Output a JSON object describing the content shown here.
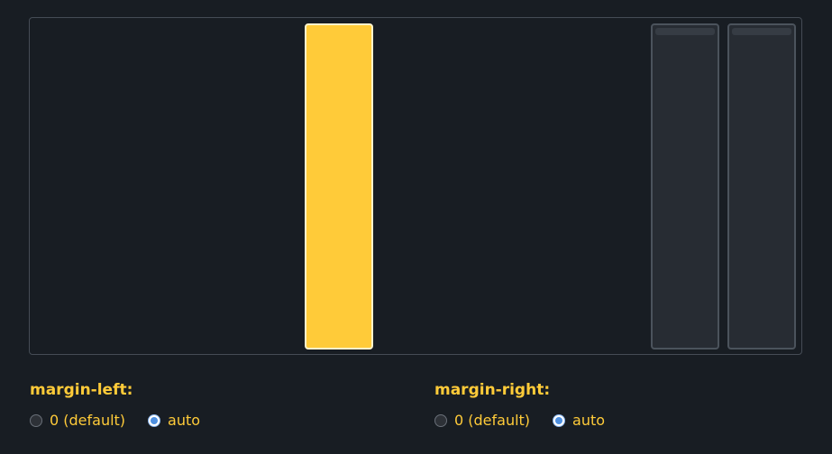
{
  "margin_left": {
    "label": "margin-left:",
    "options": [
      {
        "label": "0 (default)",
        "selected": false
      },
      {
        "label": "auto",
        "selected": true
      }
    ]
  },
  "margin_right": {
    "label": "margin-right:",
    "options": [
      {
        "label": "0 (default)",
        "selected": false
      },
      {
        "label": "auto",
        "selected": true
      }
    ]
  },
  "colors": {
    "background": "#181d23",
    "accent": "#ffcb39",
    "radio_selected": "#4d8fe0",
    "item_dim": "#272c33"
  }
}
